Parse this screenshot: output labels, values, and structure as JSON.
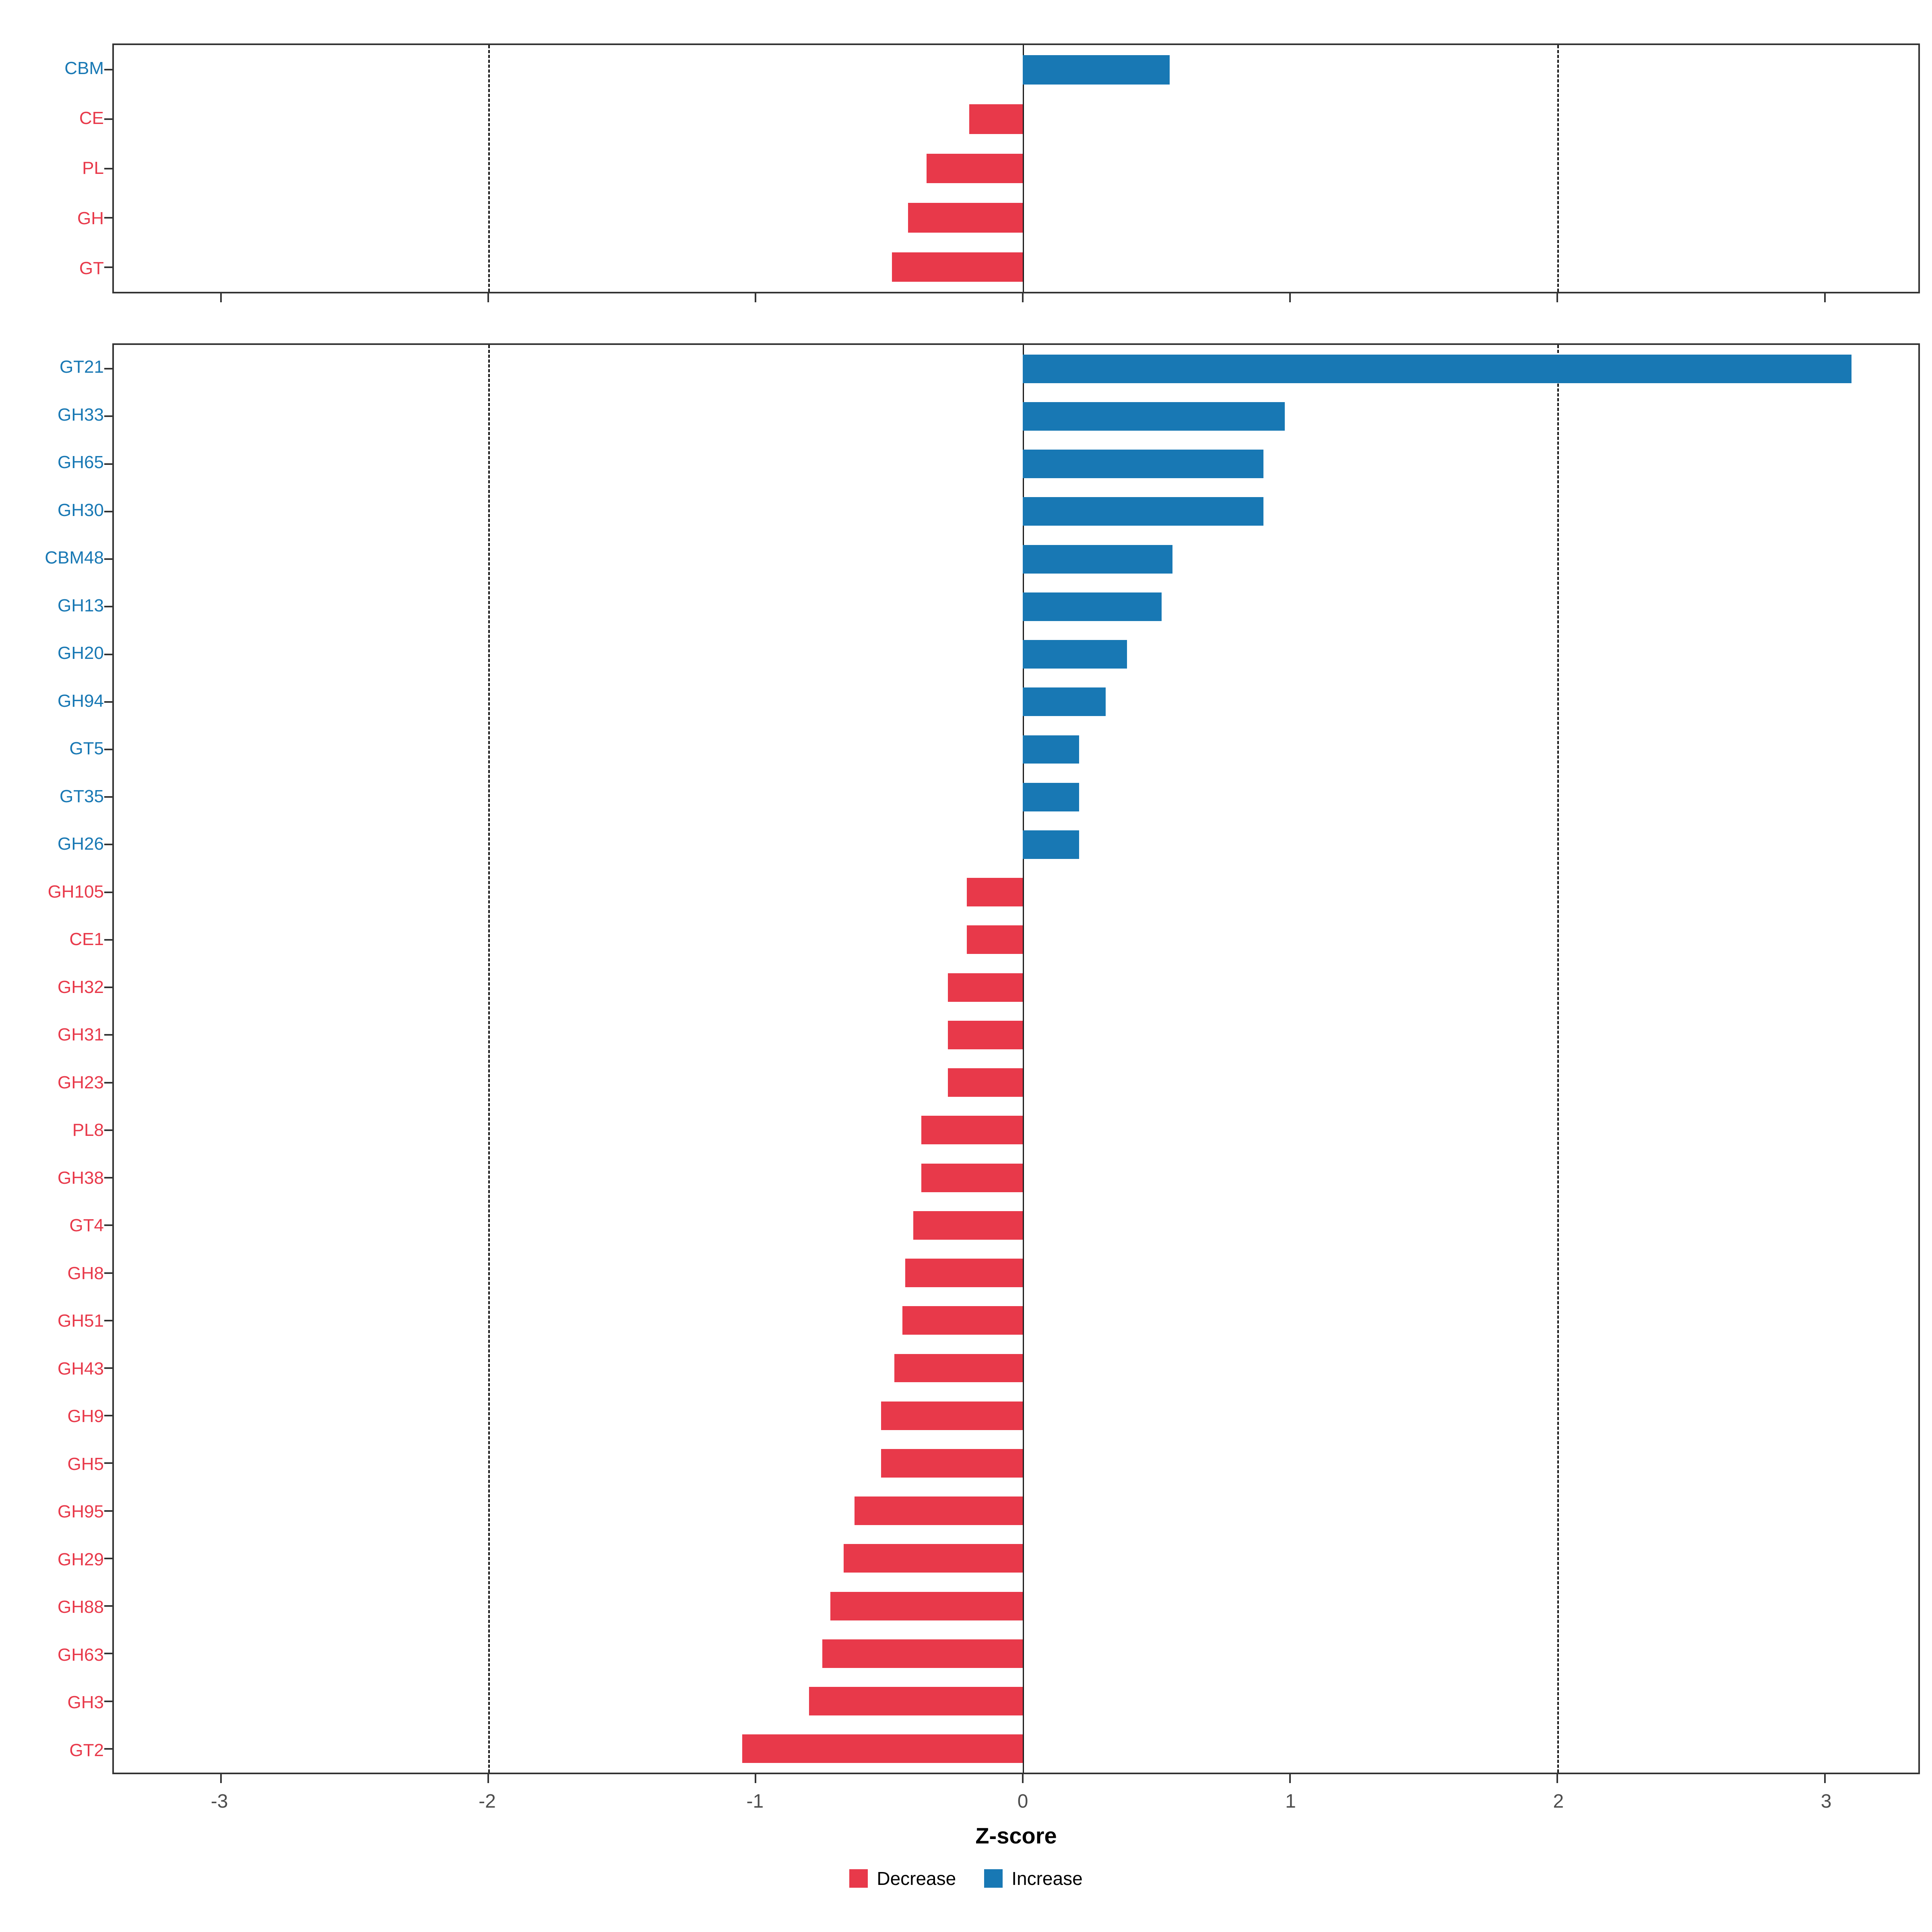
{
  "chart_data": {
    "type": "bar",
    "orientation": "horizontal",
    "title": "",
    "xlabel": "Z-score",
    "ylabel": "",
    "xlim": [
      -3.4,
      3.35
    ],
    "x_ticks": [
      -3,
      -2,
      -1,
      0,
      1,
      2,
      3
    ],
    "dashed_gridlines_x": [
      -2,
      2
    ],
    "zero_line_x": 0,
    "grid": false,
    "colors": {
      "increase": "#1878B4",
      "decrease": "#E8394A"
    },
    "legend_position": "bottom",
    "legend": [
      {
        "label": "Decrease",
        "color_key": "decrease"
      },
      {
        "label": "Increase",
        "color_key": "increase"
      }
    ],
    "panels": [
      {
        "name": "cazyme-class-panel",
        "bars": [
          {
            "label": "CBM",
            "value": 0.55,
            "direction": "increase"
          },
          {
            "label": "CE",
            "value": -0.2,
            "direction": "decrease"
          },
          {
            "label": "PL",
            "value": -0.36,
            "direction": "decrease"
          },
          {
            "label": "GH",
            "value": -0.43,
            "direction": "decrease"
          },
          {
            "label": "GT",
            "value": -0.49,
            "direction": "decrease"
          }
        ]
      },
      {
        "name": "cazyme-family-panel",
        "bars": [
          {
            "label": "GT21",
            "value": 3.1,
            "direction": "increase"
          },
          {
            "label": "GH33",
            "value": 0.98,
            "direction": "increase"
          },
          {
            "label": "GH65",
            "value": 0.9,
            "direction": "increase"
          },
          {
            "label": "GH30",
            "value": 0.9,
            "direction": "increase"
          },
          {
            "label": "CBM48",
            "value": 0.56,
            "direction": "increase"
          },
          {
            "label": "GH13",
            "value": 0.52,
            "direction": "increase"
          },
          {
            "label": "GH20",
            "value": 0.39,
            "direction": "increase"
          },
          {
            "label": "GH94",
            "value": 0.31,
            "direction": "increase"
          },
          {
            "label": "GT5",
            "value": 0.21,
            "direction": "increase"
          },
          {
            "label": "GT35",
            "value": 0.21,
            "direction": "increase"
          },
          {
            "label": "GH26",
            "value": 0.21,
            "direction": "increase"
          },
          {
            "label": "GH105",
            "value": -0.21,
            "direction": "decrease"
          },
          {
            "label": "CE1",
            "value": -0.21,
            "direction": "decrease"
          },
          {
            "label": "GH32",
            "value": -0.28,
            "direction": "decrease"
          },
          {
            "label": "GH31",
            "value": -0.28,
            "direction": "decrease"
          },
          {
            "label": "GH23",
            "value": -0.28,
            "direction": "decrease"
          },
          {
            "label": "PL8",
            "value": -0.38,
            "direction": "decrease"
          },
          {
            "label": "GH38",
            "value": -0.38,
            "direction": "decrease"
          },
          {
            "label": "GT4",
            "value": -0.41,
            "direction": "decrease"
          },
          {
            "label": "GH8",
            "value": -0.44,
            "direction": "decrease"
          },
          {
            "label": "GH51",
            "value": -0.45,
            "direction": "decrease"
          },
          {
            "label": "GH43",
            "value": -0.48,
            "direction": "decrease"
          },
          {
            "label": "GH9",
            "value": -0.53,
            "direction": "decrease"
          },
          {
            "label": "GH5",
            "value": -0.53,
            "direction": "decrease"
          },
          {
            "label": "GH95",
            "value": -0.63,
            "direction": "decrease"
          },
          {
            "label": "GH29",
            "value": -0.67,
            "direction": "decrease"
          },
          {
            "label": "GH88",
            "value": -0.72,
            "direction": "decrease"
          },
          {
            "label": "GH63",
            "value": -0.75,
            "direction": "decrease"
          },
          {
            "label": "GH3",
            "value": -0.8,
            "direction": "decrease"
          },
          {
            "label": "GT2",
            "value": -1.05,
            "direction": "decrease"
          }
        ]
      }
    ]
  }
}
